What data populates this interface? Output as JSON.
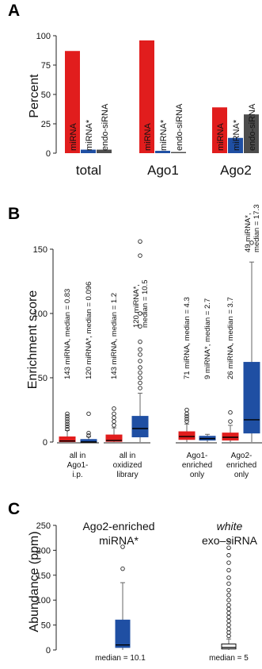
{
  "colors": {
    "mirna": "#e11d1d",
    "mirna_star": "#1f4fa3",
    "endo_sirna": "#4d4d4d",
    "axis": "#222222",
    "whisker": "#666666"
  },
  "panels": {
    "A": {
      "label": "A",
      "ylabel": "Percent",
      "series_labels": [
        "miRNA",
        "miRNA*",
        "endo-siRNA"
      ],
      "groups": [
        "total",
        "Ago1",
        "Ago2"
      ]
    },
    "B": {
      "label": "B",
      "ylabel": "Enrichment score",
      "categories": [
        {
          "lines": [
            "all in",
            "Ago1-",
            "i.p."
          ]
        },
        {
          "lines": [
            "all in",
            "oxidized",
            "library"
          ]
        },
        {
          "lines": [
            "Ago1-",
            "enriched",
            "only"
          ]
        },
        {
          "lines": [
            "Ago2-",
            "enriched",
            "only"
          ]
        }
      ],
      "annotations": [
        [
          "143 miRNA, median = 0.83"
        ],
        [
          "120 miRNA*, median = 0.096"
        ],
        [
          "143 miRNA, median = 1.2"
        ],
        [
          "120 miRNA*,",
          "median = 10.5"
        ],
        [
          "71 miRNA, median = 4.3"
        ],
        [
          "9 miRNA*, median = 2.7"
        ],
        [
          "26 miRNA, median = 3.7"
        ],
        [
          "49 miRNA*,",
          "median = 17.3"
        ]
      ]
    },
    "C": {
      "label": "C",
      "ylabel": "Abundance (ppm)",
      "title_left": [
        "Ago2-enriched",
        "miRNA*"
      ],
      "title_right_italic": "white",
      "title_right": "exo–siRNA",
      "median_labels": [
        "median = 10.1",
        "median = 5"
      ]
    }
  },
  "chart_data": [
    {
      "panel": "A",
      "type": "bar",
      "categories": [
        "total",
        "Ago1",
        "Ago2"
      ],
      "ylabel": "Percent",
      "ylim": [
        0,
        100
      ],
      "yticks": [
        0,
        25,
        50,
        75,
        100
      ],
      "series": [
        {
          "name": "miRNA",
          "values": [
            87,
            96,
            39
          ]
        },
        {
          "name": "miRNA*",
          "values": [
            3,
            2,
            13
          ]
        },
        {
          "name": "endo-siRNA",
          "values": [
            3,
            1,
            33
          ]
        }
      ]
    },
    {
      "panel": "B",
      "type": "box",
      "ylabel": "Enrichment score",
      "ylim": [
        0,
        150
      ],
      "yticks": [
        0,
        50,
        100,
        150
      ],
      "categories": [
        "all in Ago1- i.p.",
        "all in oxidized library",
        "Ago1- enriched only",
        "Ago2- enriched only"
      ],
      "boxes": [
        {
          "group": 0,
          "series": "miRNA",
          "q1": 0.3,
          "median": 0.83,
          "q3": 4,
          "whisker_low": 0,
          "whisker_high": 9,
          "outliers": [
            10,
            12,
            14,
            16,
            18,
            20,
            22
          ]
        },
        {
          "group": 0,
          "series": "miRNA*",
          "q1": 0,
          "median": 0.096,
          "q3": 2,
          "whisker_low": 0,
          "whisker_high": 4,
          "outliers": [
            5,
            7,
            22
          ]
        },
        {
          "group": 1,
          "series": "miRNA",
          "q1": 0.5,
          "median": 1.2,
          "q3": 5.5,
          "whisker_low": 0,
          "whisker_high": 11,
          "outliers": [
            13,
            16,
            19,
            22,
            26
          ]
        },
        {
          "group": 1,
          "series": "miRNA*",
          "q1": 4,
          "median": 10.5,
          "q3": 20,
          "whisker_low": 0,
          "whisker_high": 38,
          "outliers": [
            42,
            46,
            50,
            54,
            58,
            63,
            68,
            72,
            78,
            90,
            100,
            145,
            156
          ]
        },
        {
          "group": 2,
          "series": "miRNA",
          "q1": 2,
          "median": 4.3,
          "q3": 8,
          "whisker_low": 0,
          "whisker_high": 14,
          "outliers": [
            16,
            18,
            20,
            22,
            25
          ]
        },
        {
          "group": 2,
          "series": "miRNA*",
          "q1": 1.5,
          "median": 2.7,
          "q3": 4.5,
          "whisker_low": 0,
          "whisker_high": 6,
          "outliers": []
        },
        {
          "group": 3,
          "series": "miRNA",
          "q1": 1.5,
          "median": 3.7,
          "q3": 7,
          "whisker_low": 0,
          "whisker_high": 13,
          "outliers": [
            16,
            23
          ]
        },
        {
          "group": 3,
          "series": "miRNA*",
          "q1": 7,
          "median": 17.3,
          "q3": 62,
          "whisker_low": 0,
          "whisker_high": 140,
          "outliers": [
            155
          ]
        }
      ]
    },
    {
      "panel": "C",
      "type": "box",
      "ylabel": "Abundance (ppm)",
      "ylim": [
        0,
        250
      ],
      "yticks": [
        0,
        50,
        100,
        150,
        200,
        250
      ],
      "boxes": [
        {
          "group": "Ago2-enriched miRNA*",
          "median": 10.1,
          "q1": 5,
          "q3": 60,
          "whisker_low": 0,
          "whisker_high": 135,
          "outliers": [
            163,
            207
          ]
        },
        {
          "group": "white exo–siRNA",
          "median": 5,
          "q1": 2,
          "q3": 12,
          "whisker_low": 0,
          "whisker_high": 22,
          "outliers": [
            28,
            35,
            42,
            50,
            58,
            66,
            74,
            82,
            90,
            100,
            110,
            120,
            133,
            145,
            160,
            175,
            190,
            205,
            220
          ]
        }
      ]
    }
  ]
}
